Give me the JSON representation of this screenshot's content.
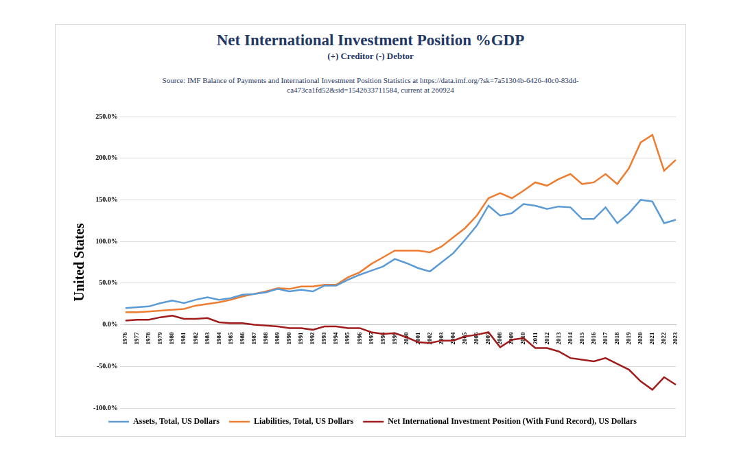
{
  "chart_data": {
    "type": "line",
    "title": "Net International Investment Position %GDP",
    "subtitle": "(+) Creditor (-) Debtor",
    "source": "Source: IMF Balance of Payments and International Investment Position Statistics at https://data.imf.org/?sk=7a51304b-6426-40c0-83dd-ca473ca1fd52&sid=1542633711584, current at 260924",
    "y_label": "United States",
    "categories": [
      "1976",
      "1977",
      "1978",
      "1979",
      "1980",
      "1981",
      "1982",
      "1983",
      "1984",
      "1985",
      "1986",
      "1987",
      "1988",
      "1989",
      "1990",
      "1991",
      "1992",
      "1993",
      "1994",
      "1995",
      "1996",
      "1997",
      "1998",
      "1999",
      "2000",
      "2001",
      "2002",
      "2003",
      "2004",
      "2005",
      "2006",
      "2007",
      "2008",
      "2009",
      "2010",
      "2011",
      "2012",
      "2013",
      "2014",
      "2015",
      "2016",
      "2017",
      "2018",
      "2019",
      "2020",
      "2021",
      "2022",
      "2023"
    ],
    "series": [
      {
        "name": "Assets, Total, US Dollars",
        "color": "#5b9bd5",
        "values": [
          20,
          21,
          22,
          26,
          29,
          26,
          30,
          33,
          30,
          32,
          36,
          37,
          39,
          43,
          40,
          42,
          40,
          47,
          47,
          54,
          60,
          65,
          70,
          79,
          74,
          68,
          64,
          75,
          86,
          102,
          119,
          143,
          131,
          134,
          145,
          143,
          139,
          142,
          141,
          127,
          127,
          141,
          122,
          134,
          150,
          148,
          122,
          126
        ]
      },
      {
        "name": "Liabilities, Total, US Dollars",
        "color": "#ed7d31",
        "values": [
          15,
          15,
          16,
          17,
          18,
          19,
          23,
          25,
          27,
          30,
          34,
          37,
          40,
          44,
          43,
          46,
          46,
          48,
          48,
          57,
          63,
          73,
          81,
          89,
          89,
          89,
          87,
          94,
          105,
          116,
          131,
          152,
          158,
          152,
          161,
          171,
          167,
          175,
          181,
          169,
          171,
          181,
          169,
          188,
          219,
          228,
          185,
          198
        ]
      },
      {
        "name": "Net International Investment Position (With Fund Record), US Dollars",
        "color": "#a01c1c",
        "values": [
          5,
          6,
          6,
          9,
          11,
          7,
          7,
          8,
          3,
          2,
          2,
          0,
          -1,
          -2,
          -4,
          -4,
          -6,
          -2,
          -2,
          -4,
          -4,
          -9,
          -11,
          -10,
          -15,
          -21,
          -22,
          -19,
          -19,
          -14,
          -12,
          -9,
          -27,
          -18,
          -16,
          -28,
          -28,
          -32,
          -40,
          -42,
          -44,
          -40,
          -47,
          -54,
          -68,
          -78,
          -63,
          -72
        ]
      }
    ],
    "ylim": [
      -100,
      250
    ],
    "yticks": [
      {
        "value": -100,
        "label": "-100.0%"
      },
      {
        "value": -50,
        "label": "-50.0%"
      },
      {
        "value": 0,
        "label": "0.0%"
      },
      {
        "value": 50,
        "label": "50.0%"
      },
      {
        "value": 100,
        "label": "100.0%"
      },
      {
        "value": 150,
        "label": "150.0%"
      },
      {
        "value": 200,
        "label": "200.0%"
      },
      {
        "value": 250,
        "label": "250.0%"
      }
    ],
    "grid": true,
    "legend": "bottom"
  }
}
